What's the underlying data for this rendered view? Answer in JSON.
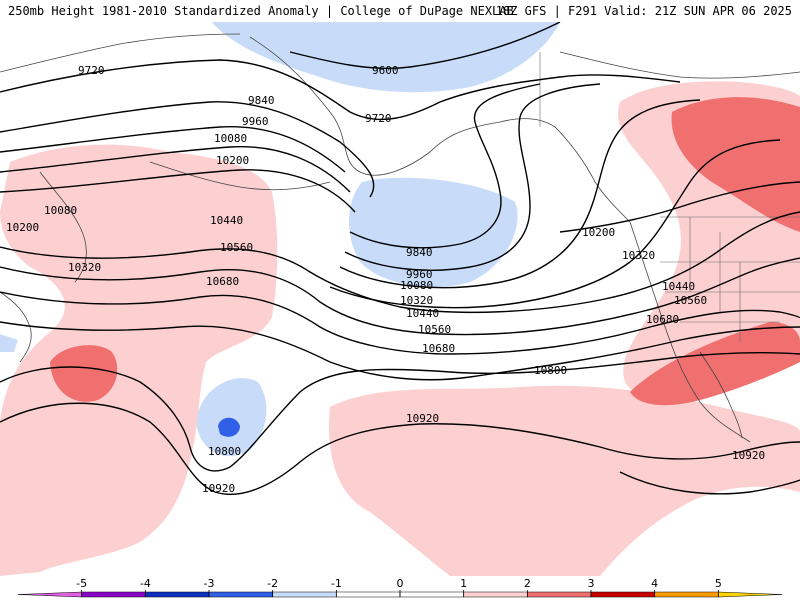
{
  "title": {
    "left": "250mb Height 1981-2010 Standardized Anomaly | College of DuPage NEXLAB",
    "right": "18Z GFS | F291 Valid: 21Z SUN APR 06 2025"
  },
  "contours": {
    "labels": [
      "9600",
      "9720",
      "9720",
      "9840",
      "9960",
      "10080",
      "10200",
      "10080",
      "10200",
      "10320",
      "10440",
      "10560",
      "10680",
      "9840",
      "9960",
      "10080",
      "10320",
      "10440",
      "10560",
      "10680",
      "10200",
      "10320",
      "10440",
      "10560",
      "10680",
      "10800",
      "10800",
      "10920",
      "10920",
      "10920"
    ]
  },
  "colorbar": {
    "ticks": [
      "-5",
      "-4",
      "-3",
      "-2",
      "-1",
      "0",
      "1",
      "2",
      "3",
      "4",
      "5"
    ],
    "colors": [
      "#e060e0",
      "#8a00c8",
      "#1030c0",
      "#3060e8",
      "#c8dcfa",
      "#ffffff",
      "#ffffff",
      "#fcd0d0",
      "#f07070",
      "#c80000",
      "#ff9a00",
      "#ffd400"
    ]
  },
  "shading": {
    "positive_weak": "#fcd0d0",
    "positive_strong": "#f07070",
    "negative_weak": "#c8dcfa",
    "negative_strong": "#3060e8",
    "coastline": "#444444"
  }
}
